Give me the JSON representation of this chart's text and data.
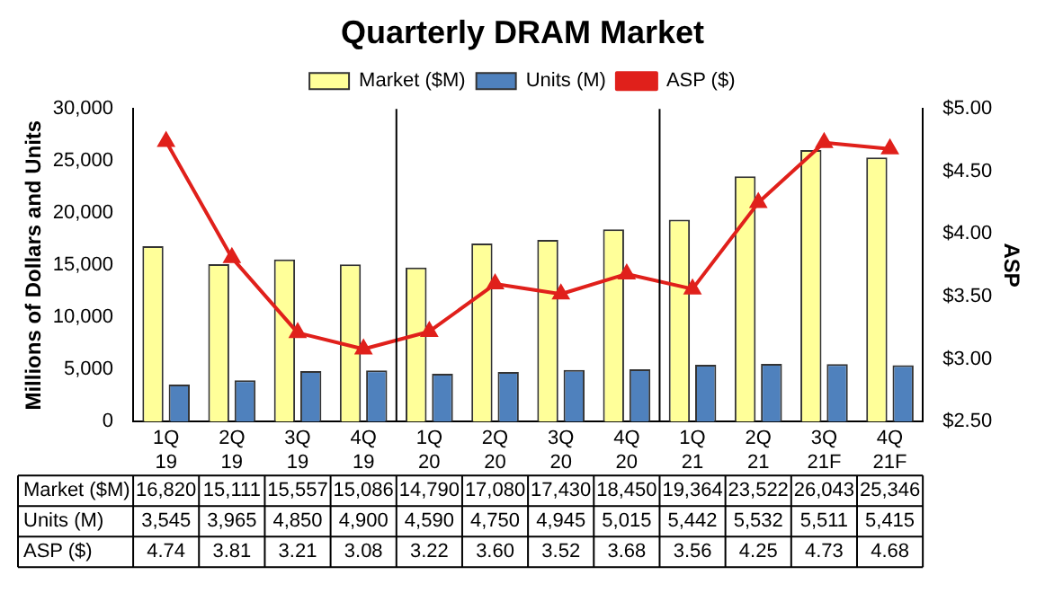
{
  "chart_data": {
    "type": "bar",
    "title": "Quarterly DRAM Market",
    "ylabel": "Millions of Dollars and Units",
    "y2label": "ASP",
    "categories": [
      "1Q 19",
      "2Q 19",
      "3Q 19",
      "4Q 19",
      "1Q 20",
      "2Q 20",
      "3Q 20",
      "4Q 20",
      "1Q 21",
      "2Q 21",
      "3Q 21F",
      "4Q 21F"
    ],
    "series": [
      {
        "name": "Market ($M)",
        "color": "#ffff99",
        "values": [
          16820,
          15111,
          15557,
          15086,
          14790,
          17080,
          17430,
          18450,
          19364,
          23522,
          26043,
          25346
        ],
        "value_labels": [
          "16,820",
          "15,111",
          "15,557",
          "15,086",
          "14,790",
          "17,080",
          "17,430",
          "18,450",
          "19,364",
          "23,522",
          "26,043",
          "25,346"
        ]
      },
      {
        "name": "Units (M)",
        "color": "#4f81bd",
        "values": [
          3545,
          3965,
          4850,
          4900,
          4590,
          4750,
          4945,
          5015,
          5442,
          5532,
          5511,
          5415
        ],
        "value_labels": [
          "3,545",
          "3,965",
          "4,850",
          "4,900",
          "4,590",
          "4,750",
          "4,945",
          "5,015",
          "5,442",
          "5,532",
          "5,511",
          "5,415"
        ]
      },
      {
        "name": "ASP ($)",
        "type": "line",
        "axis": "y2",
        "color": "#e0201b",
        "marker": "triangle",
        "values": [
          4.74,
          3.81,
          3.21,
          3.08,
          3.22,
          3.6,
          3.52,
          3.68,
          3.56,
          4.25,
          4.73,
          4.68
        ],
        "value_labels": [
          "4.74",
          "3.81",
          "3.21",
          "3.08",
          "3.22",
          "3.60",
          "3.52",
          "3.68",
          "3.56",
          "4.25",
          "4.73",
          "4.68"
        ]
      }
    ],
    "ylim": [
      0,
      30000
    ],
    "yticks": [
      0,
      {
        "value": 5000,
        "label": "5,000"
      },
      {
        "value": 10000,
        "label": "10,000"
      },
      {
        "value": 15000,
        "label": "15,000"
      },
      {
        "value": 20000,
        "label": "20,000"
      },
      {
        "value": 25000,
        "label": "25,000"
      },
      {
        "value": 30000,
        "label": "30,000"
      }
    ],
    "y2lim": [
      2.5,
      5
    ],
    "y2ticks": [
      {
        "value": 2.5,
        "label": "$2.50"
      },
      {
        "value": 3,
        "label": "$3.00"
      },
      {
        "value": 3.5,
        "label": "$3.50"
      },
      {
        "value": 4,
        "label": "$4.00"
      },
      {
        "value": 4.5,
        "label": "$4.50"
      },
      {
        "value": 5,
        "label": "$5.00"
      }
    ],
    "grid": false,
    "legend": "top"
  }
}
